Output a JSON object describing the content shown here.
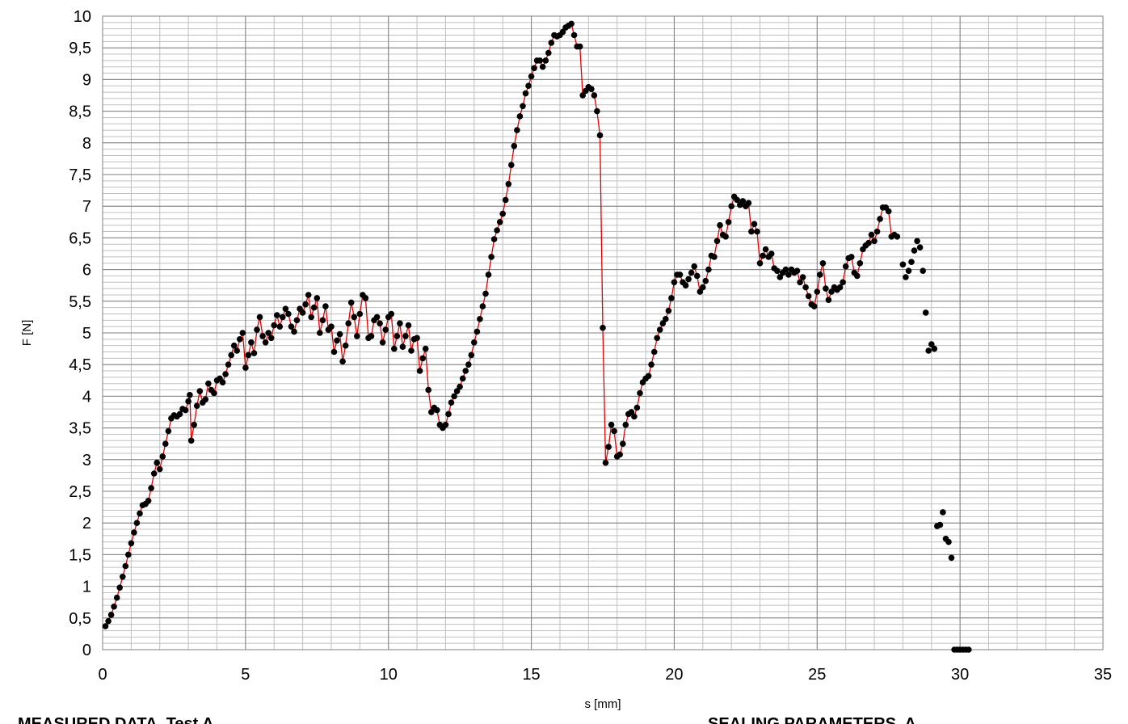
{
  "chart_data": {
    "type": "scatter",
    "xlabel": "s [mm]",
    "ylabel": "F [N]",
    "xlim": [
      0,
      35
    ],
    "ylim": [
      0,
      10
    ],
    "x_ticks": [
      0,
      5,
      10,
      15,
      20,
      25,
      30,
      35
    ],
    "y_ticks": [
      0,
      0.5,
      1,
      1.5,
      2,
      2.5,
      3,
      3.5,
      4,
      4.5,
      5,
      5.5,
      6,
      6.5,
      7,
      7.5,
      8,
      8.5,
      9,
      9.5,
      10
    ],
    "x_tick_labels": [
      "0",
      "5",
      "10",
      "15",
      "20",
      "25",
      "30",
      "35"
    ],
    "y_tick_labels": [
      "0",
      "0,5",
      "1",
      "1,5",
      "2",
      "2,5",
      "3",
      "3,5",
      "4",
      "4,5",
      "5",
      "5,5",
      "6",
      "6,5",
      "7",
      "7,5",
      "8",
      "8,5",
      "9",
      "9,5",
      "10"
    ],
    "grid": true,
    "minor_grid": true,
    "line_color": "#e00000",
    "marker_color": "#000000",
    "series": [
      {
        "connected": true,
        "points": [
          [
            0.1,
            0.37
          ],
          [
            0.2,
            0.45
          ],
          [
            0.3,
            0.55
          ],
          [
            0.4,
            0.68
          ],
          [
            0.5,
            0.82
          ],
          [
            0.6,
            0.98
          ],
          [
            0.7,
            1.15
          ],
          [
            0.8,
            1.32
          ],
          [
            0.9,
            1.5
          ],
          [
            1.0,
            1.68
          ],
          [
            1.1,
            1.85
          ],
          [
            1.2,
            2.0
          ],
          [
            1.3,
            2.15
          ],
          [
            1.4,
            2.28
          ],
          [
            1.5,
            2.3
          ],
          [
            1.6,
            2.35
          ],
          [
            1.7,
            2.55
          ],
          [
            1.8,
            2.78
          ],
          [
            1.9,
            2.95
          ],
          [
            2.0,
            2.85
          ],
          [
            2.1,
            3.05
          ],
          [
            2.2,
            3.25
          ],
          [
            2.3,
            3.45
          ],
          [
            2.4,
            3.65
          ],
          [
            2.5,
            3.7
          ],
          [
            2.6,
            3.68
          ],
          [
            2.7,
            3.72
          ],
          [
            2.8,
            3.8
          ],
          [
            2.9,
            3.78
          ],
          [
            3.0,
            3.92
          ],
          [
            3.05,
            4.02
          ],
          [
            3.1,
            3.3
          ],
          [
            3.2,
            3.55
          ],
          [
            3.3,
            3.85
          ],
          [
            3.4,
            4.08
          ],
          [
            3.5,
            3.9
          ],
          [
            3.6,
            3.95
          ],
          [
            3.7,
            4.2
          ],
          [
            3.8,
            4.1
          ],
          [
            3.9,
            4.05
          ],
          [
            4.0,
            4.25
          ],
          [
            4.1,
            4.28
          ],
          [
            4.2,
            4.22
          ],
          [
            4.3,
            4.35
          ],
          [
            4.4,
            4.5
          ],
          [
            4.5,
            4.65
          ],
          [
            4.6,
            4.8
          ],
          [
            4.7,
            4.72
          ],
          [
            4.8,
            4.9
          ],
          [
            4.9,
            5.0
          ],
          [
            5.0,
            4.45
          ],
          [
            5.1,
            4.65
          ],
          [
            5.2,
            4.85
          ],
          [
            5.3,
            4.68
          ],
          [
            5.4,
            5.05
          ],
          [
            5.5,
            5.25
          ],
          [
            5.6,
            4.95
          ],
          [
            5.7,
            4.85
          ],
          [
            5.8,
            5.0
          ],
          [
            5.9,
            4.92
          ],
          [
            6.0,
            5.12
          ],
          [
            6.1,
            5.28
          ],
          [
            6.2,
            5.1
          ],
          [
            6.3,
            5.25
          ],
          [
            6.4,
            5.38
          ],
          [
            6.5,
            5.3
          ],
          [
            6.6,
            5.1
          ],
          [
            6.7,
            5.02
          ],
          [
            6.8,
            5.2
          ],
          [
            6.9,
            5.38
          ],
          [
            7.0,
            5.32
          ],
          [
            7.1,
            5.45
          ],
          [
            7.2,
            5.6
          ],
          [
            7.3,
            5.25
          ],
          [
            7.4,
            5.4
          ],
          [
            7.5,
            5.55
          ],
          [
            7.6,
            5.0
          ],
          [
            7.7,
            5.2
          ],
          [
            7.8,
            5.42
          ],
          [
            7.9,
            5.05
          ],
          [
            8.0,
            5.1
          ],
          [
            8.1,
            4.7
          ],
          [
            8.2,
            4.88
          ],
          [
            8.3,
            4.98
          ],
          [
            8.4,
            4.55
          ],
          [
            8.5,
            4.8
          ],
          [
            8.6,
            5.15
          ],
          [
            8.7,
            5.48
          ],
          [
            8.8,
            5.25
          ],
          [
            8.9,
            4.95
          ],
          [
            9.0,
            5.3
          ],
          [
            9.1,
            5.6
          ],
          [
            9.2,
            5.55
          ],
          [
            9.3,
            4.92
          ],
          [
            9.4,
            4.95
          ],
          [
            9.5,
            5.2
          ],
          [
            9.6,
            5.25
          ],
          [
            9.7,
            5.15
          ],
          [
            9.8,
            4.85
          ],
          [
            9.9,
            5.05
          ],
          [
            10.0,
            5.25
          ],
          [
            10.1,
            5.3
          ],
          [
            10.2,
            4.75
          ],
          [
            10.3,
            4.95
          ],
          [
            10.4,
            5.15
          ],
          [
            10.5,
            4.78
          ],
          [
            10.6,
            4.95
          ],
          [
            10.7,
            5.12
          ],
          [
            10.8,
            4.72
          ],
          [
            10.9,
            4.9
          ],
          [
            11.0,
            4.92
          ],
          [
            11.1,
            4.4
          ],
          [
            11.2,
            4.6
          ],
          [
            11.3,
            4.75
          ],
          [
            11.4,
            4.1
          ],
          [
            11.5,
            3.75
          ],
          [
            11.6,
            3.82
          ],
          [
            11.7,
            3.78
          ],
          [
            11.8,
            3.55
          ],
          [
            11.9,
            3.5
          ],
          [
            12.0,
            3.55
          ],
          [
            12.1,
            3.72
          ],
          [
            12.2,
            3.9
          ],
          [
            12.3,
            4.0
          ],
          [
            12.4,
            4.08
          ],
          [
            12.5,
            4.15
          ],
          [
            12.6,
            4.28
          ],
          [
            12.7,
            4.4
          ],
          [
            12.8,
            4.5
          ],
          [
            12.9,
            4.65
          ],
          [
            13.0,
            4.85
          ],
          [
            13.1,
            5.02
          ],
          [
            13.2,
            5.22
          ],
          [
            13.3,
            5.42
          ],
          [
            13.4,
            5.62
          ],
          [
            13.5,
            5.92
          ],
          [
            13.6,
            6.2
          ],
          [
            13.7,
            6.48
          ],
          [
            13.8,
            6.62
          ],
          [
            13.9,
            6.75
          ],
          [
            14.0,
            6.88
          ],
          [
            14.1,
            7.1
          ],
          [
            14.2,
            7.35
          ],
          [
            14.3,
            7.65
          ],
          [
            14.4,
            7.95
          ],
          [
            14.5,
            8.2
          ],
          [
            14.6,
            8.42
          ],
          [
            14.7,
            8.58
          ],
          [
            14.8,
            8.78
          ],
          [
            14.9,
            8.9
          ],
          [
            15.0,
            9.05
          ],
          [
            15.1,
            9.18
          ],
          [
            15.2,
            9.3
          ],
          [
            15.3,
            9.3
          ],
          [
            15.4,
            9.2
          ],
          [
            15.5,
            9.3
          ],
          [
            15.6,
            9.42
          ],
          [
            15.7,
            9.58
          ],
          [
            15.8,
            9.7
          ],
          [
            15.9,
            9.68
          ],
          [
            16.0,
            9.7
          ],
          [
            16.1,
            9.75
          ],
          [
            16.2,
            9.82
          ],
          [
            16.3,
            9.85
          ],
          [
            16.4,
            9.88
          ],
          [
            16.5,
            9.7
          ],
          [
            16.6,
            9.52
          ],
          [
            16.7,
            9.52
          ],
          [
            16.8,
            8.75
          ],
          [
            16.9,
            8.82
          ],
          [
            17.0,
            8.88
          ],
          [
            17.1,
            8.85
          ],
          [
            17.2,
            8.75
          ],
          [
            17.3,
            8.5
          ],
          [
            17.4,
            8.12
          ],
          [
            17.5,
            5.08
          ],
          [
            17.6,
            2.95
          ],
          [
            17.7,
            3.2
          ],
          [
            17.8,
            3.55
          ],
          [
            17.9,
            3.45
          ],
          [
            18.0,
            3.05
          ],
          [
            18.1,
            3.08
          ],
          [
            18.2,
            3.25
          ],
          [
            18.3,
            3.55
          ],
          [
            18.4,
            3.72
          ],
          [
            18.5,
            3.75
          ],
          [
            18.6,
            3.68
          ],
          [
            18.7,
            3.82
          ],
          [
            18.8,
            4.05
          ],
          [
            18.9,
            4.22
          ],
          [
            19.0,
            4.28
          ],
          [
            19.1,
            4.32
          ],
          [
            19.2,
            4.5
          ],
          [
            19.3,
            4.7
          ],
          [
            19.4,
            4.92
          ],
          [
            19.5,
            5.05
          ],
          [
            19.6,
            5.15
          ],
          [
            19.7,
            5.22
          ],
          [
            19.8,
            5.35
          ],
          [
            19.9,
            5.55
          ],
          [
            20.0,
            5.8
          ],
          [
            20.1,
            5.92
          ],
          [
            20.2,
            5.92
          ],
          [
            20.3,
            5.8
          ],
          [
            20.4,
            5.75
          ],
          [
            20.5,
            5.85
          ],
          [
            20.6,
            5.95
          ],
          [
            20.7,
            6.05
          ],
          [
            20.8,
            5.9
          ],
          [
            20.9,
            5.65
          ],
          [
            21.0,
            5.72
          ],
          [
            21.1,
            5.82
          ],
          [
            21.2,
            6.0
          ],
          [
            21.3,
            6.22
          ],
          [
            21.4,
            6.2
          ],
          [
            21.5,
            6.45
          ],
          [
            21.6,
            6.7
          ],
          [
            21.7,
            6.55
          ],
          [
            21.8,
            6.52
          ],
          [
            21.9,
            6.75
          ],
          [
            22.0,
            7.0
          ],
          [
            22.1,
            7.15
          ],
          [
            22.2,
            7.1
          ],
          [
            22.3,
            7.02
          ],
          [
            22.4,
            7.08
          ],
          [
            22.5,
            7.0
          ],
          [
            22.6,
            7.05
          ],
          [
            22.7,
            6.6
          ],
          [
            22.8,
            6.72
          ],
          [
            22.9,
            6.6
          ],
          [
            23.0,
            6.1
          ],
          [
            23.1,
            6.22
          ],
          [
            23.2,
            6.32
          ],
          [
            23.3,
            6.2
          ],
          [
            23.4,
            6.25
          ],
          [
            23.5,
            6.02
          ],
          [
            23.6,
            5.98
          ],
          [
            23.7,
            5.88
          ],
          [
            23.8,
            5.95
          ],
          [
            23.9,
            6.0
          ],
          [
            24.0,
            5.92
          ],
          [
            24.1,
            6.0
          ],
          [
            24.2,
            5.95
          ],
          [
            24.3,
            5.98
          ],
          [
            24.4,
            5.8
          ],
          [
            24.5,
            5.88
          ],
          [
            24.6,
            5.72
          ],
          [
            24.7,
            5.58
          ],
          [
            24.8,
            5.45
          ],
          [
            24.9,
            5.42
          ],
          [
            25.0,
            5.65
          ],
          [
            25.1,
            5.92
          ],
          [
            25.2,
            6.1
          ],
          [
            25.3,
            5.7
          ],
          [
            25.4,
            5.52
          ],
          [
            25.5,
            5.65
          ],
          [
            25.6,
            5.72
          ],
          [
            25.7,
            5.68
          ],
          [
            25.8,
            5.72
          ],
          [
            25.9,
            5.8
          ],
          [
            26.0,
            6.05
          ],
          [
            26.1,
            6.18
          ],
          [
            26.2,
            6.2
          ],
          [
            26.3,
            5.95
          ],
          [
            26.4,
            5.9
          ],
          [
            26.5,
            6.1
          ],
          [
            26.6,
            6.32
          ],
          [
            26.7,
            6.38
          ],
          [
            26.8,
            6.42
          ],
          [
            26.9,
            6.55
          ],
          [
            27.0,
            6.45
          ],
          [
            27.1,
            6.6
          ],
          [
            27.2,
            6.8
          ],
          [
            27.3,
            6.98
          ],
          [
            27.4,
            6.98
          ],
          [
            27.5,
            6.92
          ],
          [
            27.6,
            6.52
          ],
          [
            27.7,
            6.55
          ],
          [
            27.8,
            6.52
          ]
        ]
      },
      {
        "connected": false,
        "points": [
          [
            28.0,
            6.08
          ],
          [
            28.1,
            5.88
          ],
          [
            28.2,
            5.98
          ],
          [
            28.3,
            6.12
          ],
          [
            28.4,
            6.3
          ],
          [
            28.5,
            6.45
          ],
          [
            28.6,
            6.35
          ],
          [
            28.7,
            5.98
          ],
          [
            28.8,
            5.32
          ],
          [
            28.9,
            4.72
          ],
          [
            29.0,
            4.82
          ],
          [
            29.1,
            4.75
          ],
          [
            29.2,
            1.95
          ],
          [
            29.3,
            1.97
          ],
          [
            29.4,
            2.17
          ],
          [
            29.5,
            1.75
          ],
          [
            29.6,
            1.7
          ],
          [
            29.7,
            1.45
          ],
          [
            29.8,
            0
          ],
          [
            29.9,
            0
          ],
          [
            30.0,
            0
          ],
          [
            30.1,
            0
          ],
          [
            30.2,
            0
          ],
          [
            30.3,
            0
          ]
        ]
      }
    ]
  },
  "footer": {
    "left_text": "MEASURED DATA, Test A",
    "right_text": "SEALING PARAMETERS, A"
  }
}
